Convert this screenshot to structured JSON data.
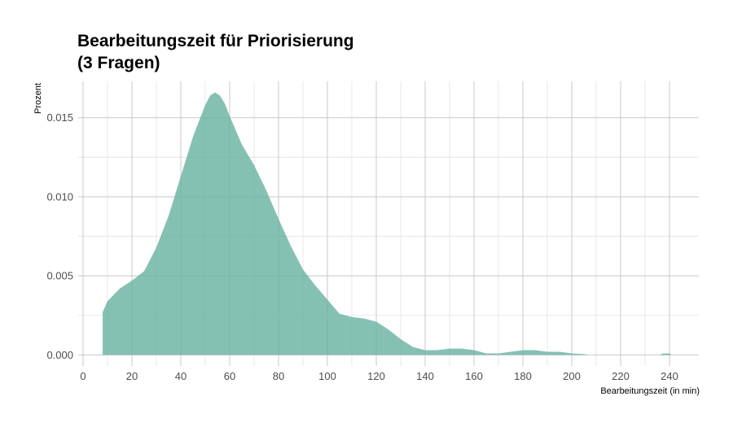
{
  "chart_data": {
    "type": "area",
    "title_lines": [
      "Bearbeitungszeit für Priorisierung",
      "(3 Fragen)"
    ],
    "xlabel": "Bearbeitungszeit (in min)",
    "ylabel": "Prozent",
    "xlim": [
      -2,
      252
    ],
    "ylim": [
      -0.0007,
      0.0173
    ],
    "x_ticks": [
      0,
      20,
      40,
      60,
      80,
      100,
      120,
      140,
      160,
      180,
      200,
      220,
      240
    ],
    "y_ticks": [
      0.0,
      0.005,
      0.01,
      0.015
    ],
    "y_tick_labels": [
      "0.000",
      "0.005",
      "0.010",
      "0.015"
    ],
    "grid": true,
    "fill_color": "#66b2a0",
    "series": [
      {
        "x": [
          8,
          10,
          15,
          20,
          25,
          30,
          35,
          40,
          45,
          50,
          52,
          54,
          56,
          58,
          60,
          65,
          70,
          75,
          80,
          85,
          90,
          95,
          100,
          105,
          110,
          115,
          120,
          125,
          130,
          135,
          140,
          145,
          150,
          155,
          160,
          165,
          170,
          175,
          180,
          185,
          190,
          195,
          200,
          205,
          207
        ],
        "y": [
          0.0027,
          0.0034,
          0.0042,
          0.0047,
          0.0053,
          0.0068,
          0.0088,
          0.0113,
          0.0138,
          0.0158,
          0.0164,
          0.0166,
          0.0164,
          0.0159,
          0.0151,
          0.0133,
          0.012,
          0.0104,
          0.0086,
          0.0069,
          0.0054,
          0.0044,
          0.0035,
          0.0026,
          0.0024,
          0.0023,
          0.0021,
          0.0016,
          0.001,
          0.0005,
          0.0003,
          0.0003,
          0.0004,
          0.0004,
          0.0003,
          0.0001,
          0.0001,
          0.0002,
          0.0003,
          0.0003,
          0.0002,
          0.0002,
          0.0001,
          5e-05,
          0.0
        ]
      },
      {
        "x": [
          236,
          237,
          239,
          240,
          241
        ],
        "y": [
          0.0,
          8e-05,
          0.0001,
          8e-05,
          0.0
        ]
      }
    ]
  }
}
